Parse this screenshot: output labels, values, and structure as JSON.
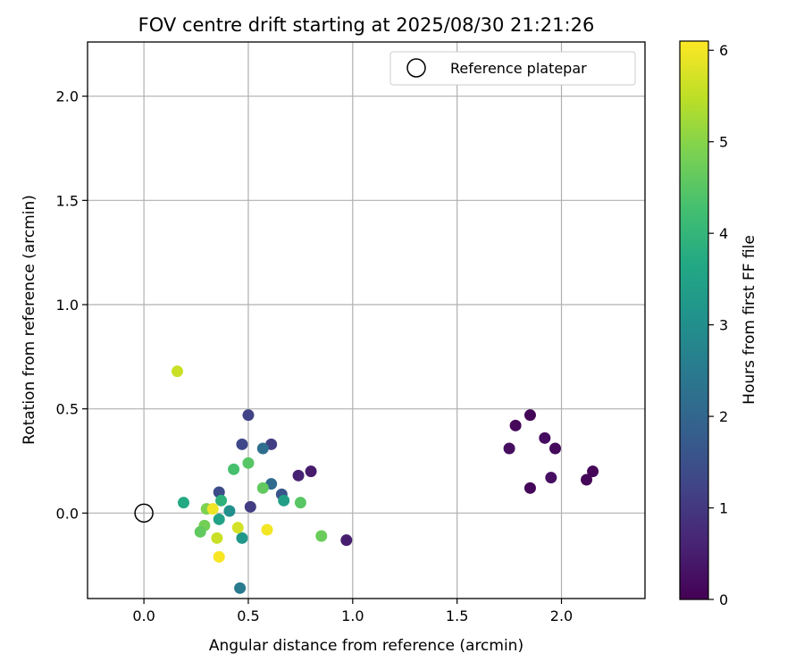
{
  "chart_data": {
    "type": "scatter",
    "title": "FOV centre drift starting at 2025/08/30 21:21:26",
    "xlabel": "Angular distance from reference (arcmin)",
    "ylabel": "Rotation from reference (arcmin)",
    "xlim": [
      -0.27,
      2.4
    ],
    "ylim": [
      -0.41,
      2.26
    ],
    "xticks": [
      0.0,
      0.5,
      1.0,
      1.5,
      2.0
    ],
    "xtick_labels": [
      "0.0",
      "0.5",
      "1.0",
      "1.5",
      "2.0"
    ],
    "yticks": [
      0.0,
      0.5,
      1.0,
      1.5,
      2.0
    ],
    "ytick_labels": [
      "0.0",
      "0.5",
      "1.0",
      "1.5",
      "2.0"
    ],
    "grid": true,
    "legend_position": "top-right",
    "legend": [
      {
        "label": "Reference platepar",
        "marker": "open-circle"
      }
    ],
    "reference_point": {
      "x": 0.0,
      "y": 0.0
    },
    "colorbar": {
      "label": "Hours from first FF file",
      "colormap": "viridis",
      "range": [
        0,
        6.1
      ],
      "ticks": [
        0,
        1,
        2,
        3,
        4,
        5,
        6
      ],
      "tick_labels": [
        "0",
        "1",
        "2",
        "3",
        "4",
        "5",
        "6"
      ]
    },
    "points": [
      {
        "x": 1.85,
        "y": 0.47,
        "h": 0.05
      },
      {
        "x": 1.78,
        "y": 0.42,
        "h": 0.12
      },
      {
        "x": 1.92,
        "y": 0.36,
        "h": 0.2
      },
      {
        "x": 1.75,
        "y": 0.31,
        "h": 0.22
      },
      {
        "x": 1.97,
        "y": 0.31,
        "h": 0.15
      },
      {
        "x": 2.15,
        "y": 0.2,
        "h": 0.08
      },
      {
        "x": 2.12,
        "y": 0.16,
        "h": 0.1
      },
      {
        "x": 1.95,
        "y": 0.17,
        "h": 0.25
      },
      {
        "x": 1.85,
        "y": 0.12,
        "h": 0.1
      },
      {
        "x": 0.8,
        "y": 0.2,
        "h": 0.45
      },
      {
        "x": 0.74,
        "y": 0.18,
        "h": 0.6
      },
      {
        "x": 0.97,
        "y": -0.13,
        "h": 0.5
      },
      {
        "x": 0.5,
        "y": 0.47,
        "h": 1.2
      },
      {
        "x": 0.47,
        "y": 0.33,
        "h": 1.3
      },
      {
        "x": 0.61,
        "y": 0.33,
        "h": 1.1
      },
      {
        "x": 0.57,
        "y": 0.31,
        "h": 2.2
      },
      {
        "x": 0.36,
        "y": 0.1,
        "h": 1.4
      },
      {
        "x": 0.66,
        "y": 0.09,
        "h": 1.6
      },
      {
        "x": 0.51,
        "y": 0.03,
        "h": 1.1
      },
      {
        "x": 0.61,
        "y": 0.14,
        "h": 2.1
      },
      {
        "x": 0.67,
        "y": 0.06,
        "h": 3.4
      },
      {
        "x": 0.41,
        "y": 0.01,
        "h": 3.0
      },
      {
        "x": 0.36,
        "y": -0.03,
        "h": 3.5
      },
      {
        "x": 0.47,
        "y": -0.12,
        "h": 3.2
      },
      {
        "x": 0.46,
        "y": -0.36,
        "h": 2.5
      },
      {
        "x": 0.19,
        "y": 0.05,
        "h": 3.7
      },
      {
        "x": 0.37,
        "y": 0.06,
        "h": 3.9
      },
      {
        "x": 0.43,
        "y": 0.21,
        "h": 4.3
      },
      {
        "x": 0.5,
        "y": 0.24,
        "h": 4.5
      },
      {
        "x": 0.57,
        "y": 0.12,
        "h": 4.6
      },
      {
        "x": 0.75,
        "y": 0.05,
        "h": 4.5
      },
      {
        "x": 0.85,
        "y": -0.11,
        "h": 4.7
      },
      {
        "x": 0.3,
        "y": 0.02,
        "h": 4.9
      },
      {
        "x": 0.29,
        "y": -0.06,
        "h": 4.8
      },
      {
        "x": 0.27,
        "y": -0.09,
        "h": 4.6
      },
      {
        "x": 0.35,
        "y": -0.12,
        "h": 5.6
      },
      {
        "x": 0.16,
        "y": 0.68,
        "h": 5.6
      },
      {
        "x": 0.45,
        "y": -0.07,
        "h": 5.7
      },
      {
        "x": 0.33,
        "y": 0.02,
        "h": 5.95
      },
      {
        "x": 0.59,
        "y": -0.08,
        "h": 6.0
      },
      {
        "x": 0.36,
        "y": -0.21,
        "h": 6.05
      }
    ]
  }
}
